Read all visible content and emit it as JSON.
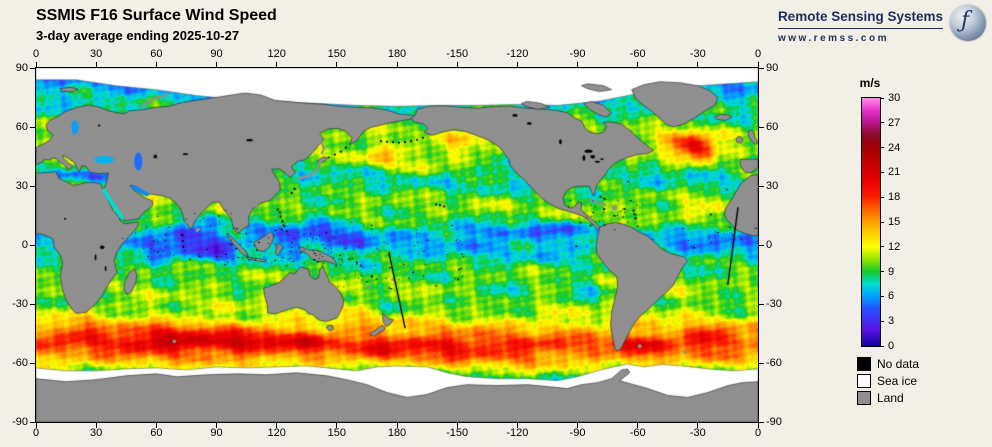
{
  "header": {
    "title": "SSMIS F16 Surface Wind Speed",
    "subtitle": "3-day average ending 2025-10-27"
  },
  "branding": {
    "name": "Remote Sensing Systems",
    "url": "www.remss.com"
  },
  "map": {
    "projection": "equirectangular",
    "lon_ticks": [
      "0",
      "30",
      "60",
      "90",
      "120",
      "150",
      "180",
      "-150",
      "-120",
      "-90",
      "-60",
      "-30",
      "0"
    ],
    "lat_ticks": [
      "90",
      "60",
      "30",
      "0",
      "-30",
      "-60",
      "-90"
    ],
    "lon_range": [
      0,
      360
    ],
    "lat_range": [
      -90,
      90
    ],
    "variable": "surface wind speed",
    "units": "m/s",
    "value_range": [
      0,
      30
    ]
  },
  "colorbar": {
    "unit": "m/s",
    "min": 0,
    "max": 30,
    "ticks": [
      0,
      3,
      6,
      9,
      12,
      15,
      18,
      21,
      24,
      27,
      30
    ],
    "stops": [
      {
        "v": 0,
        "c": "#1400a0"
      },
      {
        "v": 2,
        "c": "#5a14e6"
      },
      {
        "v": 4.5,
        "c": "#2850ff"
      },
      {
        "v": 6,
        "c": "#00a0ff"
      },
      {
        "v": 7.5,
        "c": "#00dcd2"
      },
      {
        "v": 9,
        "c": "#14c828"
      },
      {
        "v": 10.5,
        "c": "#96e600"
      },
      {
        "v": 12,
        "c": "#ffff00"
      },
      {
        "v": 13.5,
        "c": "#ffd200"
      },
      {
        "v": 15,
        "c": "#ffa000"
      },
      {
        "v": 16.5,
        "c": "#ff6400"
      },
      {
        "v": 18,
        "c": "#ff1e00"
      },
      {
        "v": 20,
        "c": "#e60000"
      },
      {
        "v": 22,
        "c": "#c80000"
      },
      {
        "v": 24,
        "c": "#a00000"
      },
      {
        "v": 25.5,
        "c": "#8c0a28"
      },
      {
        "v": 27,
        "c": "#b4148c"
      },
      {
        "v": 28.5,
        "c": "#e632c8"
      },
      {
        "v": 30,
        "c": "#ff8cf0"
      }
    ]
  },
  "legend": {
    "items": [
      {
        "label": "No data",
        "color": "#000000"
      },
      {
        "label": "Sea ice",
        "color": "#ffffff"
      },
      {
        "label": "Land",
        "color": "#8f8f8f"
      }
    ]
  }
}
